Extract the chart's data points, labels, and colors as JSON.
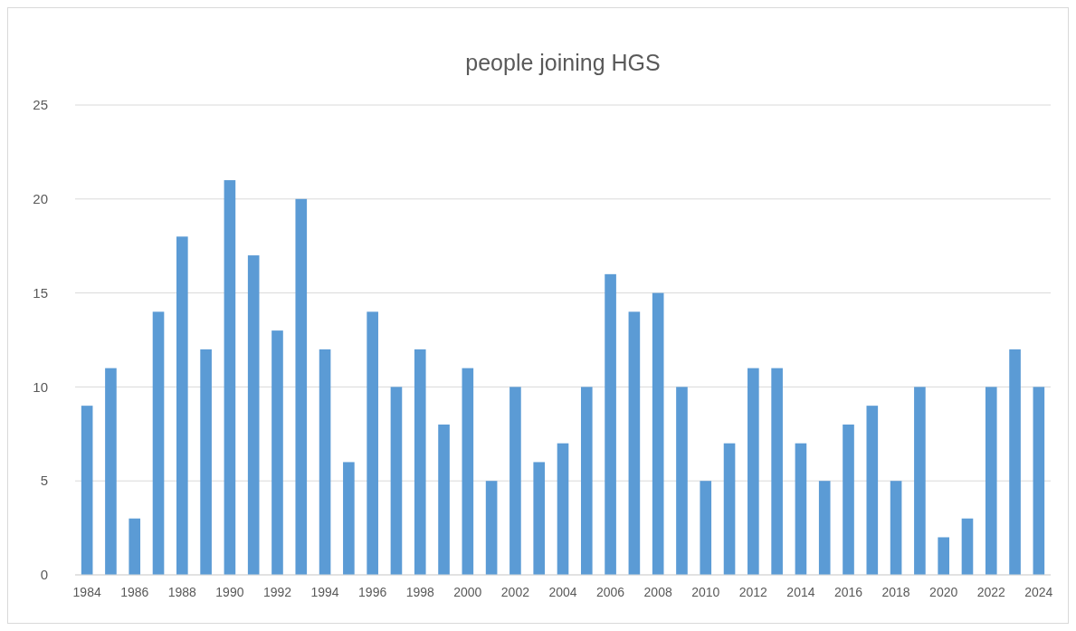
{
  "chart_data": {
    "type": "bar",
    "title": "people joining HGS",
    "categories": [
      "1984",
      null,
      "1986",
      null,
      "1988",
      null,
      "1990",
      null,
      "1992",
      null,
      "1994",
      null,
      "1996",
      null,
      "1998",
      null,
      "2000",
      null,
      "2002",
      null,
      "2004",
      null,
      "2006",
      null,
      "2008",
      null,
      "2010",
      null,
      "2012",
      null,
      "2014",
      null,
      "2016",
      null,
      "2018",
      null,
      "2020",
      null,
      "2022",
      null,
      "2024"
    ],
    "values": [
      9,
      11,
      3,
      14,
      18,
      12,
      21,
      17,
      13,
      20,
      12,
      6,
      14,
      10,
      12,
      8,
      11,
      5,
      10,
      6,
      7,
      10,
      16,
      14,
      15,
      10,
      5,
      7,
      11,
      11,
      7,
      5,
      8,
      9,
      5,
      10,
      2,
      3,
      10,
      12,
      10
    ],
    "color": "#5b9bd5",
    "ylim": [
      0,
      25
    ],
    "yticks": [
      0,
      5,
      10,
      15,
      20,
      25
    ],
    "grid": "y"
  }
}
